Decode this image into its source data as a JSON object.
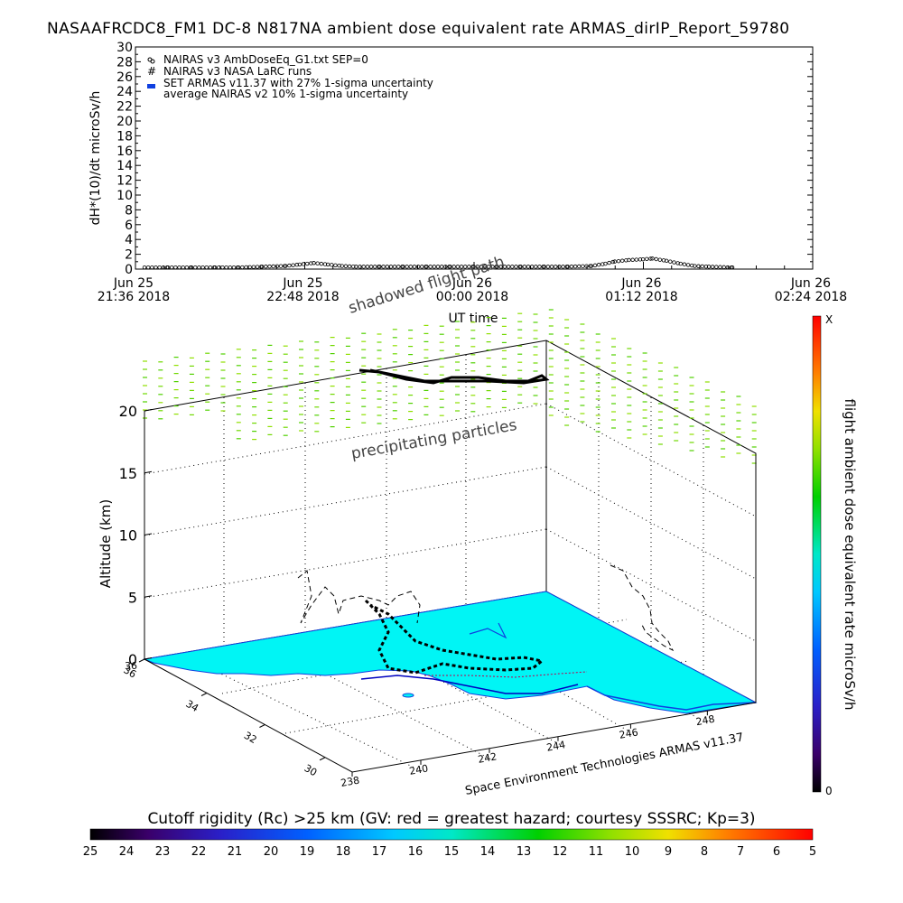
{
  "header": {
    "title": "NASAAFRCDC8_FM1 DC-8   N817NA ambient dose equivalent rate ARMAS_dirIP_Report_59780"
  },
  "chart_data": [
    {
      "type": "line",
      "ylabel": "dH*(10)/dt microSv/h",
      "xlabel": "UT time",
      "ylim": [
        0,
        30
      ],
      "yticks": [
        0,
        2,
        4,
        6,
        8,
        10,
        12,
        14,
        16,
        18,
        20,
        22,
        24,
        26,
        28,
        30
      ],
      "xticks": [
        {
          "l1": "Jun 25",
          "l2": "21:36 2018",
          "t": 0
        },
        {
          "l1": "Jun 25",
          "l2": "22:48 2018",
          "t": 72
        },
        {
          "l1": "Jun 26",
          "l2": "00:00 2018",
          "t": 144
        },
        {
          "l1": "Jun 26",
          "l2": "01:12 2018",
          "t": 216
        },
        {
          "l1": "Jun 26",
          "l2": "02:24 2018",
          "t": 288
        }
      ],
      "xlim_minutes": [
        0,
        288
      ],
      "legend": [
        "NAIRAS v3 AmbDoseEq_G1.txt SEP=0",
        "NAIRAS v3 NASA LaRC runs",
        "SET ARMAS v11.37 with 27% 1-sigma uncertainty",
        "average NAIRAS v2 10% 1-sigma uncertainty"
      ],
      "legend_position": "top-left",
      "series": [
        {
          "name": "NAIRAS v3 AmbDoseEq_G1.txt SEP=0",
          "x": [
            0,
            10,
            20,
            30,
            40,
            50,
            60,
            66,
            72,
            78,
            84,
            90,
            100,
            110,
            120,
            130,
            140,
            150,
            160,
            170,
            180,
            190,
            196,
            200,
            206,
            212,
            216,
            222,
            228,
            234,
            240,
            250
          ],
          "values": [
            0.1,
            0.1,
            0.1,
            0.1,
            0.1,
            0.2,
            0.3,
            0.5,
            0.7,
            0.5,
            0.3,
            0.2,
            0.2,
            0.2,
            0.2,
            0.2,
            0.2,
            0.2,
            0.2,
            0.2,
            0.2,
            0.3,
            0.6,
            0.9,
            1.1,
            1.2,
            1.3,
            1.0,
            0.6,
            0.3,
            0.2,
            0.1
          ]
        }
      ]
    },
    {
      "type": "scatter",
      "ylabel": "Altitude (km)",
      "zticks": [
        0,
        5,
        10,
        15,
        20
      ],
      "lat_ticks": [
        36,
        34,
        32,
        30
      ],
      "lon_ticks": [
        238,
        240,
        242,
        244,
        246,
        248
      ],
      "annotations": [
        "shadowed flight path",
        "precipitating particles",
        "Space Environment Technologies ARMAS v11.37"
      ],
      "colorbar_label": "flight ambient dose equivalent rate microSv/h",
      "colorbar_range": [
        "0",
        "X"
      ]
    }
  ],
  "colorbar_bottom": {
    "title": "Cutoff rigidity (Rc) >25 km (GV: red = greatest hazard; courtesy SSSRC; Kp=3)",
    "ticks": [
      "25",
      "24",
      "23",
      "22",
      "21",
      "20",
      "19",
      "18",
      "17",
      "16",
      "15",
      "14",
      "13",
      "12",
      "11",
      "10",
      "9",
      "8",
      "7",
      "6",
      "5"
    ]
  }
}
